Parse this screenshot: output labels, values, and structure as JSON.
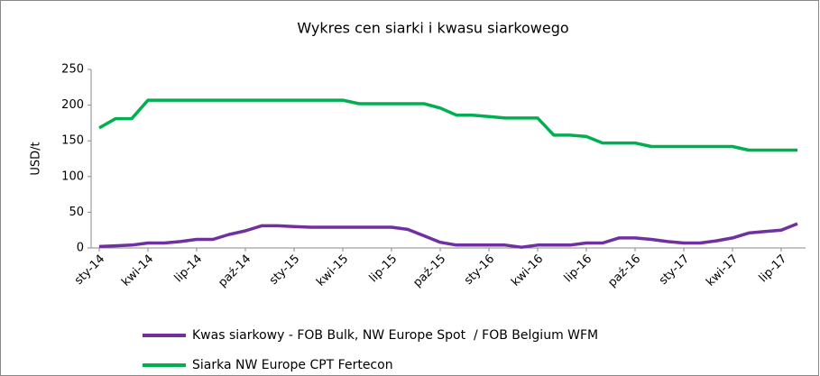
{
  "chart_data": {
    "type": "line",
    "title": "Wykres cen siarki i kwasu siarkowego",
    "y_label": "USD/t",
    "categories": [
      "sty-14",
      null,
      null,
      "kwi-14",
      null,
      null,
      "lip-14",
      null,
      null,
      "paź-14",
      null,
      null,
      "sty-15",
      null,
      null,
      "kwi-15",
      null,
      null,
      "lip-15",
      null,
      null,
      "paź-15",
      null,
      null,
      "sty-16",
      null,
      null,
      "kwi-16",
      null,
      null,
      "lip-16",
      null,
      null,
      "paź-16",
      null,
      null,
      "sty-17",
      null,
      null,
      "kwi-17",
      null,
      null,
      "lip-17",
      null
    ],
    "series": [
      {
        "name": "Kwas siarkowy - FOB Bulk, NW Europe Spot  / FOB Belgium WFM",
        "color": "#7030a0",
        "values": [
          2,
          3,
          4,
          7,
          7,
          9,
          12,
          12,
          19,
          24,
          31,
          31,
          30,
          29,
          29,
          29,
          29,
          29,
          29,
          26,
          17,
          8,
          4,
          4,
          4,
          4,
          1,
          4,
          4,
          4,
          7,
          7,
          14,
          14,
          12,
          9,
          7,
          7,
          10,
          14,
          21,
          23,
          25,
          34
        ]
      },
      {
        "name": "Siarka NW Europe CPT Fertecon",
        "color": "#00b050",
        "values": [
          168,
          181,
          181,
          207,
          207,
          207,
          207,
          207,
          207,
          207,
          207,
          207,
          207,
          207,
          207,
          207,
          202,
          202,
          202,
          202,
          202,
          196,
          186,
          186,
          184,
          182,
          182,
          182,
          158,
          158,
          156,
          147,
          147,
          147,
          142,
          142,
          142,
          142,
          142,
          142,
          137,
          137,
          137,
          137
        ]
      }
    ],
    "ylim": [
      0,
      250
    ],
    "yticks": [
      0,
      50,
      100,
      150,
      200,
      250
    ]
  }
}
